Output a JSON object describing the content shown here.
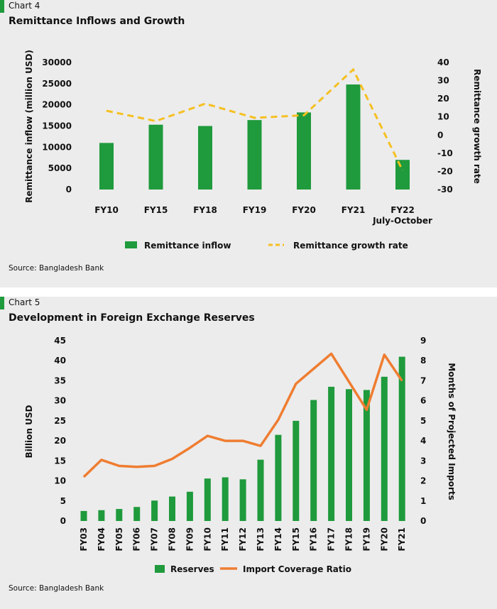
{
  "charts": [
    {
      "label": "Chart 4",
      "title": "Remittance Inflows and Growth",
      "source": "Source: Bangladesh Bank"
    },
    {
      "label": "Chart 5",
      "title": "Development in Foreign Exchange Reserves",
      "source": "Source: Bangladesh Bank"
    }
  ],
  "colors": {
    "bar": "#1f9a3c",
    "growth_line": "#f5c022",
    "coverage_line": "#ef7d31",
    "accent_tag": "#1f9a3c",
    "panel_bg": "#ececec"
  },
  "chart_data": [
    {
      "type": "bar",
      "title": "Remittance Inflows and Growth",
      "categories": [
        "FY10",
        "FY15",
        "FY18",
        "FY19",
        "FY20",
        "FY21",
        "FY22 July-October"
      ],
      "category_lines": [
        [
          "FY10"
        ],
        [
          "FY15"
        ],
        [
          "FY18"
        ],
        [
          "FY19"
        ],
        [
          "FY20"
        ],
        [
          "FY21"
        ],
        [
          "FY22",
          "July-October"
        ]
      ],
      "series": [
        {
          "name": "Remittance inflow",
          "type": "bar",
          "axis": "left",
          "values": [
            11000,
            15300,
            15000,
            16400,
            18200,
            24800,
            7000
          ]
        },
        {
          "name": "Remittance growth rate",
          "type": "line",
          "style": "dashed",
          "axis": "right",
          "values": [
            13.4,
            7.7,
            17.3,
            9.5,
            10.9,
            36.1,
            -19.5
          ]
        }
      ],
      "ylabel": "Remittance inflow (million USD)",
      "y2label": "Remittance growth rate",
      "ylim": [
        0,
        30000
      ],
      "yticks": [
        0,
        5000,
        10000,
        15000,
        20000,
        25000,
        30000
      ],
      "y2lim": [
        -30,
        40
      ],
      "y2ticks": [
        -30,
        -20,
        -10,
        0,
        10,
        20,
        30,
        40
      ],
      "grid": false,
      "legend": "bottom"
    },
    {
      "type": "bar",
      "title": "Development in Foreign Exchange Reserves",
      "categories": [
        "FY03",
        "FY04",
        "FY05",
        "FY06",
        "FY07",
        "FY08",
        "FY09",
        "FY10",
        "FY11",
        "FY12",
        "FY13",
        "FY14",
        "FY15",
        "FY16",
        "FY17",
        "FY18",
        "FY19",
        "FY20",
        "FY21"
      ],
      "series": [
        {
          "name": "Reserves",
          "type": "bar",
          "axis": "left",
          "values": [
            2.5,
            2.7,
            3.0,
            3.5,
            5.1,
            6.1,
            7.3,
            10.6,
            10.9,
            10.4,
            15.3,
            21.5,
            25.0,
            30.2,
            33.5,
            32.9,
            32.7,
            36.0,
            41.0
          ]
        },
        {
          "name": "Import Coverage Ratio",
          "type": "line",
          "axis": "right",
          "values": [
            2.2,
            3.05,
            2.75,
            2.7,
            2.75,
            3.1,
            3.65,
            4.25,
            4.0,
            4.0,
            3.75,
            5.05,
            6.85,
            7.6,
            8.35,
            6.95,
            5.55,
            8.3,
            7.0
          ]
        }
      ],
      "ylabel": "Billion USD",
      "y2label": "Months of Projected Imports",
      "ylim": [
        0,
        45
      ],
      "yticks": [
        0,
        5,
        10,
        15,
        20,
        25,
        30,
        35,
        40,
        45
      ],
      "y2lim": [
        0,
        9
      ],
      "y2ticks": [
        0,
        1,
        2,
        3,
        4,
        5,
        6,
        7,
        8,
        9
      ],
      "grid": false,
      "legend": "bottom"
    }
  ]
}
